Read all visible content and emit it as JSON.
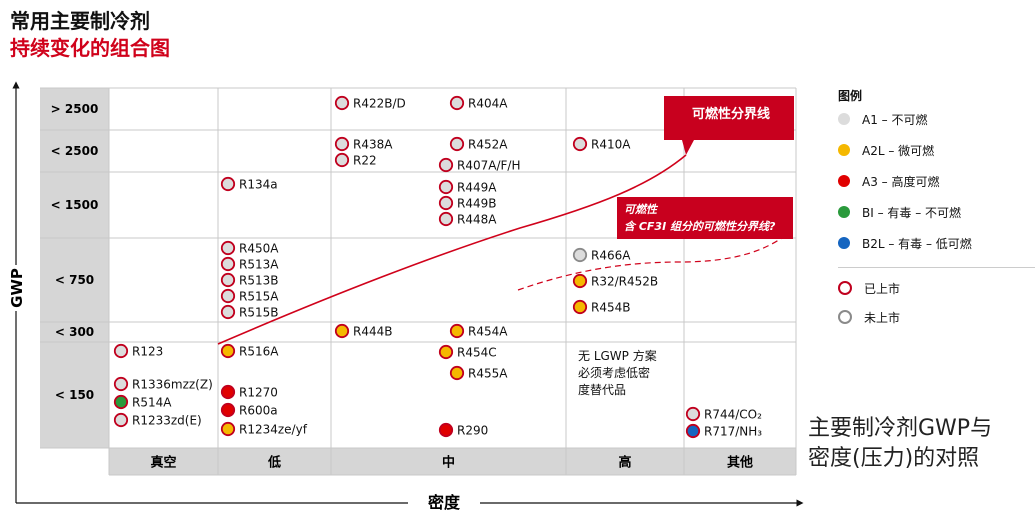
{
  "header": {
    "title_line1": "常用主要制冷剂",
    "title_line2": "持续变化的组合图"
  },
  "chart_data": {
    "type": "table",
    "title": "常用主要制冷剂 持续变化的组合图",
    "ylabel": "GWP",
    "xlabel": "密度",
    "rows": [
      "> 2500",
      "< 2500",
      "< 1500",
      "< 750",
      "< 300",
      "< 150"
    ],
    "columns": [
      "真空",
      "低",
      "中",
      "高",
      "其他"
    ],
    "class_colors": {
      "A1": "#dcdcdc",
      "A2L": "#f5b800",
      "A3": "#e00000",
      "BI": "#2a9a3c",
      "B2L": "#1565c0"
    },
    "marker_colors": {
      "listed": "#c0001e",
      "unlisted": "#8a8a8a"
    },
    "refrigerants": [
      {
        "name": "R422B/D",
        "row": 0,
        "col": 2,
        "class": "A1",
        "status": "listed"
      },
      {
        "name": "R404A",
        "row": 0,
        "col": 2,
        "class": "A1",
        "status": "listed"
      },
      {
        "name": "R438A",
        "row": 1,
        "col": 2,
        "class": "A1",
        "status": "listed"
      },
      {
        "name": "R22",
        "row": 1,
        "col": 2,
        "class": "A1",
        "status": "listed"
      },
      {
        "name": "R452A",
        "row": 1,
        "col": 2,
        "class": "A1",
        "status": "listed"
      },
      {
        "name": "R407A/F/H",
        "row": 1,
        "col": 2,
        "class": "A1",
        "status": "listed"
      },
      {
        "name": "R410A",
        "row": 1,
        "col": 3,
        "class": "A1",
        "status": "listed"
      },
      {
        "name": "R134a",
        "row": 2,
        "col": 1,
        "class": "A1",
        "status": "listed"
      },
      {
        "name": "R449A",
        "row": 2,
        "col": 2,
        "class": "A1",
        "status": "listed"
      },
      {
        "name": "R449B",
        "row": 2,
        "col": 2,
        "class": "A1",
        "status": "listed"
      },
      {
        "name": "R448A",
        "row": 2,
        "col": 2,
        "class": "A1",
        "status": "listed"
      },
      {
        "name": "R450A",
        "row": 3,
        "col": 1,
        "class": "A1",
        "status": "listed"
      },
      {
        "name": "R513A",
        "row": 3,
        "col": 1,
        "class": "A1",
        "status": "listed"
      },
      {
        "name": "R513B",
        "row": 3,
        "col": 1,
        "class": "A1",
        "status": "listed"
      },
      {
        "name": "R515A",
        "row": 3,
        "col": 1,
        "class": "A1",
        "status": "listed"
      },
      {
        "name": "R515B",
        "row": 3,
        "col": 1,
        "class": "A1",
        "status": "listed"
      },
      {
        "name": "R466A",
        "row": 3,
        "col": 3,
        "class": "A1",
        "status": "unlisted"
      },
      {
        "name": "R32/R452B",
        "row": 3,
        "col": 3,
        "class": "A2L",
        "status": "listed"
      },
      {
        "name": "R454B",
        "row": 3,
        "col": 3,
        "class": "A2L",
        "status": "listed"
      },
      {
        "name": "R444B",
        "row": 4,
        "col": 2,
        "class": "A2L",
        "status": "listed"
      },
      {
        "name": "R454A",
        "row": 4,
        "col": 2,
        "class": "A2L",
        "status": "listed"
      },
      {
        "name": "R123",
        "row": 5,
        "col": 0,
        "class": "A1",
        "status": "listed"
      },
      {
        "name": "R1336mzz(Z)",
        "row": 5,
        "col": 0,
        "class": "A1",
        "status": "listed"
      },
      {
        "name": "R514A",
        "row": 5,
        "col": 0,
        "class": "BI",
        "status": "listed"
      },
      {
        "name": "R1233zd(E)",
        "row": 5,
        "col": 0,
        "class": "A1",
        "status": "listed"
      },
      {
        "name": "R516A",
        "row": 5,
        "col": 1,
        "class": "A2L",
        "status": "listed"
      },
      {
        "name": "R1270",
        "row": 5,
        "col": 1,
        "class": "A3",
        "status": "listed"
      },
      {
        "name": "R600a",
        "row": 5,
        "col": 1,
        "class": "A3",
        "status": "listed"
      },
      {
        "name": "R1234ze/yf",
        "row": 5,
        "col": 1,
        "class": "A2L",
        "status": "listed"
      },
      {
        "name": "R454C",
        "row": 5,
        "col": 2,
        "class": "A2L",
        "status": "listed"
      },
      {
        "name": "R455A",
        "row": 5,
        "col": 2,
        "class": "A2L",
        "status": "listed"
      },
      {
        "name": "R290",
        "row": 5,
        "col": 2,
        "class": "A3",
        "status": "listed"
      },
      {
        "name": "R744/CO₂",
        "row": 5,
        "col": 4,
        "class": "A1",
        "status": "listed"
      },
      {
        "name": "R717/NH₃",
        "row": 5,
        "col": 4,
        "class": "B2L",
        "status": "listed"
      }
    ],
    "notes": [
      {
        "text": "无 LGWP 方案",
        "row": 5,
        "col": 3
      },
      {
        "text": "必须考虑低密",
        "row": 5,
        "col": 3
      },
      {
        "text": "度替代品",
        "row": 5,
        "col": 3
      }
    ],
    "annotations": {
      "flammable_boundary": "可燃性分界线",
      "cf3i_line1": "可燃性",
      "cf3i_line2": "含 CF3I 组分的可燃性分界线?"
    }
  },
  "legend": {
    "title": "图例",
    "items": [
      {
        "label": "A1 – 不可燃",
        "color": "#dcdcdc"
      },
      {
        "label": "A2L – 微可燃",
        "color": "#f5b800"
      },
      {
        "label": "A3 – 高度可燃",
        "color": "#e00000"
      },
      {
        "label": "BI – 有毒 – 不可燃",
        "color": "#2a9a3c"
      },
      {
        "label": "B2L – 有毒 – 低可燃",
        "color": "#1565c0"
      }
    ],
    "status": [
      {
        "label": "已上市",
        "color": "#c0001e"
      },
      {
        "label": "未上市",
        "color": "#8a8a8a"
      }
    ]
  },
  "caption": {
    "line1": "主要制冷剂GWP与",
    "line2": "密度(压力)的对照"
  }
}
